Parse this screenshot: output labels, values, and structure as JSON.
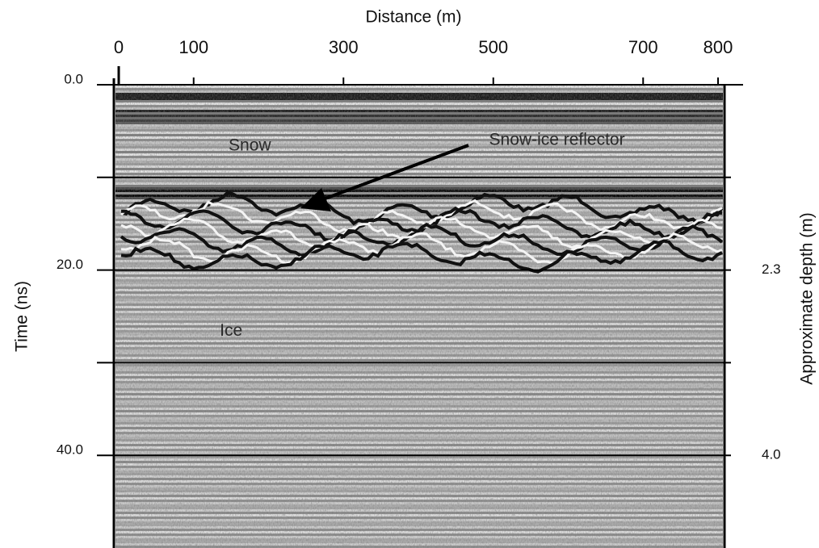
{
  "chart_data": {
    "type": "radargram",
    "x_label": "Distance (m)",
    "y_label": "Time (ns)",
    "y2_label": "Approximate depth (m)",
    "xlim": [
      0,
      800
    ],
    "xticks": [
      0,
      100,
      300,
      500,
      700,
      800
    ],
    "ylim": [
      0,
      50
    ],
    "yticks": [
      {
        "value": 0,
        "label": "0.0"
      },
      {
        "value": 20,
        "label": "20.0"
      },
      {
        "value": 40,
        "label": "40.0"
      }
    ],
    "ygrid": [
      10,
      20,
      30,
      40
    ],
    "y2lim": [
      0.6,
      4.85
    ],
    "y2ticks": [
      2.3,
      {
        "value": 4.0,
        "label": "4.0"
      }
    ],
    "annotations": [
      {
        "text": "Snow",
        "x": 175,
        "y": 6.6
      },
      {
        "text": "Snow-ice reflector",
        "x": 585,
        "y": 6.0
      },
      {
        "text": "Ice",
        "x": 150,
        "y": 26.6
      }
    ]
  }
}
